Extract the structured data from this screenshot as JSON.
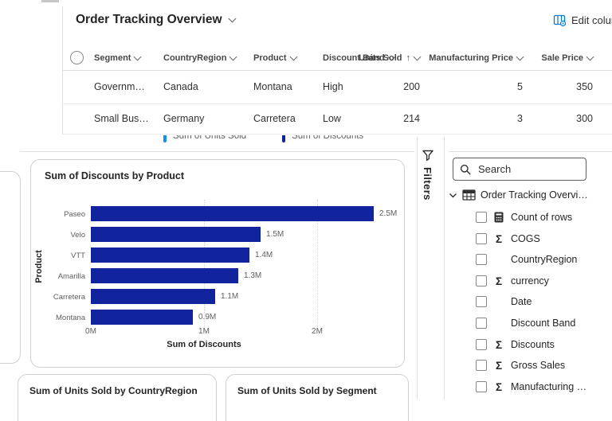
{
  "header": {
    "title": "Order Tracking Overview",
    "edit_columns_label": "Edit columns"
  },
  "table": {
    "columns": [
      {
        "label": "Segment"
      },
      {
        "label": "CountryRegion"
      },
      {
        "label": "Product"
      },
      {
        "label": "Discount Band"
      },
      {
        "label": "Units Sold",
        "sorted": "asc"
      },
      {
        "label": "Manufacturing Price"
      },
      {
        "label": "Sale Price"
      }
    ],
    "rows": [
      [
        "Governm…",
        "Canada",
        "Montana",
        "High",
        "200",
        "5",
        "350"
      ],
      [
        "Small Bus…",
        "Germany",
        "Carretera",
        "Low",
        "214",
        "3",
        "300"
      ]
    ]
  },
  "legend": {
    "items": [
      {
        "label": "Sum of Units Sold",
        "color": "#118DFF"
      },
      {
        "label": "Sum of Discounts",
        "color": "#12239E"
      }
    ]
  },
  "chart_data": {
    "type": "bar",
    "orientation": "horizontal",
    "title": "Sum of Discounts by Product",
    "categories": [
      "Paseo",
      "Velo",
      "VTT",
      "Amarilla",
      "Carretera",
      "Montana"
    ],
    "values": [
      2.5,
      1.5,
      1.4,
      1.3,
      1.1,
      0.9
    ],
    "value_labels": [
      "2.5M",
      "1.5M",
      "1.4M",
      "1.3M",
      "1.1M",
      "0.9M"
    ],
    "xlabel": "Sum of Discounts",
    "ylabel": "Product",
    "xticks": [
      "0M",
      "1M",
      "2M"
    ],
    "xlim": [
      0,
      2.6
    ],
    "grid": "dotted-vertical",
    "bar_color": "#12239E",
    "legend_position": "none"
  },
  "bottom_cards": [
    {
      "title": "Sum of Units Sold by CountryRegion"
    },
    {
      "title": "Sum of Units Sold by Segment"
    }
  ],
  "filters_pane": {
    "label": "Filters"
  },
  "fields_pane": {
    "search_placeholder": "Search",
    "table_name": "Order Tracking Overvi…",
    "fields": [
      {
        "label": "Count of rows",
        "icon": "calculator"
      },
      {
        "label": "COGS",
        "icon": "sigma"
      },
      {
        "label": "CountryRegion",
        "icon": "none"
      },
      {
        "label": "currency",
        "icon": "sigma"
      },
      {
        "label": "Date",
        "icon": "none"
      },
      {
        "label": "Discount Band",
        "icon": "none"
      },
      {
        "label": "Discounts",
        "icon": "sigma"
      },
      {
        "label": "Gross Sales",
        "icon": "sigma"
      },
      {
        "label": "Manufacturing …",
        "icon": "sigma"
      }
    ]
  },
  "icons": {
    "sigma": "Σ",
    "sort_ascending": "↑"
  },
  "colors": {
    "accent_blue": "#0078D4",
    "series_units_sold": "#118DFF",
    "series_discounts": "#12239E",
    "text_dark": "#252423",
    "text_gray": "#605E5C",
    "border": "#E1DFDD"
  }
}
